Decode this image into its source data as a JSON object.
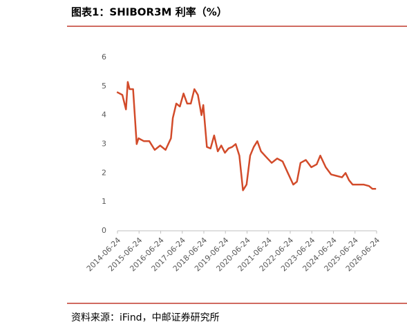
{
  "chart_data": {
    "type": "line",
    "title": "图表1：SHIBOR3M 利率（%）",
    "source": "资料来源：iFind，中邮证券研究所",
    "x": [
      "2014-06-15",
      "2014-09-15",
      "2014-11-15",
      "2014-12-15",
      "2015-01-15",
      "2015-03-15",
      "2015-05-15",
      "2015-06-15",
      "2015-09-15",
      "2015-12-15",
      "2016-03-15",
      "2016-06-15",
      "2016-09-15",
      "2016-12-15",
      "2017-01-15",
      "2017-03-15",
      "2017-05-15",
      "2017-07-15",
      "2017-09-15",
      "2017-11-15",
      "2018-01-15",
      "2018-03-15",
      "2018-05-15",
      "2018-06-15",
      "2018-08-15",
      "2018-10-15",
      "2018-12-15",
      "2019-02-15",
      "2019-04-15",
      "2019-06-15",
      "2019-08-15",
      "2019-10-15",
      "2019-12-15",
      "2020-02-15",
      "2020-04-15",
      "2020-06-15",
      "2020-08-15",
      "2020-10-15",
      "2020-12-15",
      "2021-02-15",
      "2021-05-15",
      "2021-08-15",
      "2021-11-15",
      "2022-02-15",
      "2022-05-15",
      "2022-08-15",
      "2022-10-15",
      "2022-12-15",
      "2023-03-15",
      "2023-06-15",
      "2023-09-15",
      "2023-11-15",
      "2024-02-15",
      "2024-05-15",
      "2024-08-15",
      "2024-11-15",
      "2025-01-15",
      "2025-03-15",
      "2025-05-15",
      "2025-08-15",
      "2025-11-15",
      "2026-02-15",
      "2026-04-15",
      "2026-06-15"
    ],
    "series": [
      {
        "name": "SHIBOR3M",
        "color": "#d24b2a",
        "values": [
          4.8,
          4.7,
          4.2,
          5.15,
          4.9,
          4.9,
          3.0,
          3.2,
          3.1,
          3.1,
          2.8,
          2.95,
          2.8,
          3.2,
          3.9,
          4.4,
          4.3,
          4.75,
          4.4,
          4.4,
          4.9,
          4.7,
          4.0,
          4.35,
          2.9,
          2.85,
          3.3,
          2.75,
          2.95,
          2.7,
          2.85,
          2.9,
          3.0,
          2.6,
          1.4,
          1.6,
          2.6,
          2.9,
          3.1,
          2.75,
          2.55,
          2.35,
          2.5,
          2.4,
          2.0,
          1.6,
          1.7,
          2.35,
          2.45,
          2.2,
          2.3,
          2.6,
          2.2,
          1.95,
          1.9,
          1.85,
          2.0,
          1.75,
          1.6,
          1.6,
          1.6,
          1.55,
          1.45,
          1.45
        ]
      }
    ],
    "xlim": [
      "2014-06-24",
      "2026-06-24"
    ],
    "xticks": [
      "2014-06-24",
      "2015-06-24",
      "2016-06-24",
      "2017-06-24",
      "2018-06-24",
      "2019-06-24",
      "2020-06-24",
      "2021-06-24",
      "2022-06-24",
      "2023-06-24",
      "2024-06-24",
      "2025-06-24",
      "2026-06-24"
    ],
    "ylim": [
      0,
      6
    ],
    "yticks": [
      0,
      1,
      2,
      3,
      4,
      5,
      6
    ],
    "grid": false
  }
}
